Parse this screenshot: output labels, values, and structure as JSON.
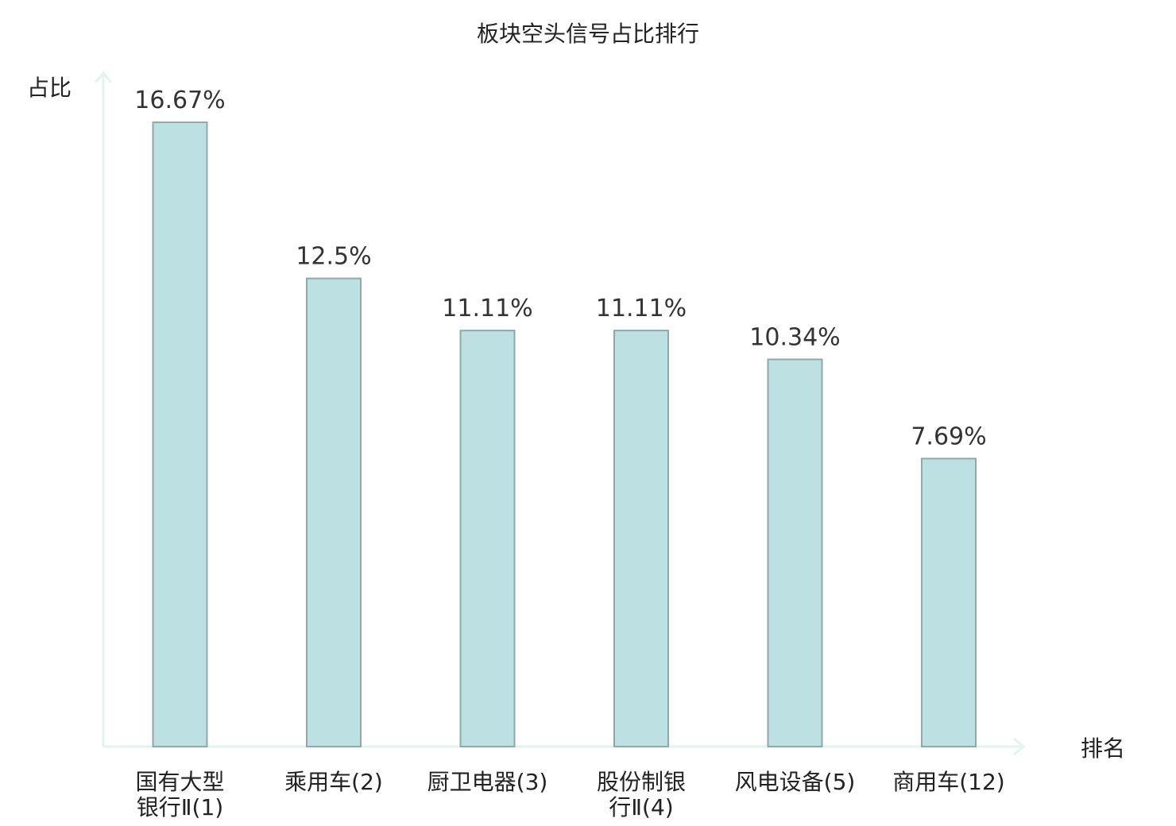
{
  "chart_data": {
    "type": "bar",
    "title": "板块空头信号占比排行",
    "ylabel": "占比",
    "xlabel": "排名",
    "categories": [
      [
        "国有大型",
        "银行Ⅱ(1)"
      ],
      [
        "乘用车(2)"
      ],
      [
        "厨卫电器(3)"
      ],
      [
        "股份制银",
        "行Ⅱ(4)"
      ],
      [
        "风电设备(5)"
      ],
      [
        "商用车(12)"
      ]
    ],
    "values": [
      16.67,
      12.5,
      11.11,
      11.11,
      10.34,
      7.69
    ],
    "value_labels": [
      "16.67%",
      "12.5%",
      "11.11%",
      "11.11%",
      "10.34%",
      "7.69%"
    ],
    "highlight_index": 5,
    "ylim": [
      0,
      16.67
    ],
    "grid": false,
    "legend": "none",
    "colors": {
      "bar_fill": "#bde0e3",
      "bar_stroke": "#8fa8aa",
      "axis": "#e3f3f0",
      "highlight_text": "#dd1111",
      "text": "#222222",
      "value_text": "#333333"
    }
  }
}
